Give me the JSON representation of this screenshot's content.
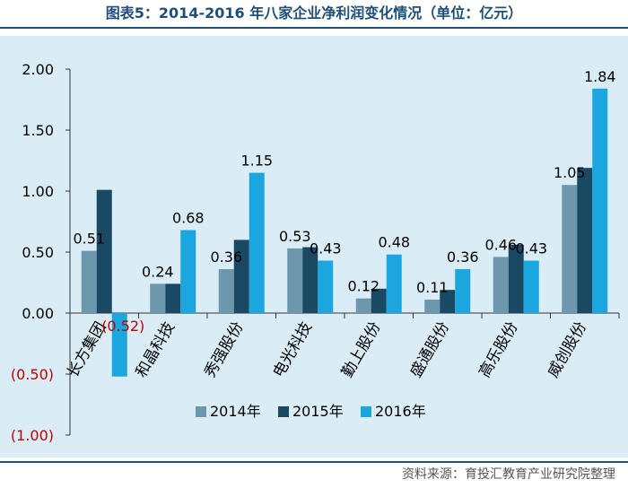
{
  "figure_title": "图表5：2014-2016 年八家企业净利润变化情况（单位：亿元）",
  "source_note": "资料来源：育投汇教育产业研究院整理",
  "colors": {
    "panel_bg": "#daedf7",
    "axis": "#333333",
    "negative_text": "#c00000",
    "title": "#1f4e79"
  },
  "chart_data": {
    "type": "bar",
    "title": "",
    "xlabel": "",
    "ylabel": "",
    "ylim": [
      -1.0,
      2.0
    ],
    "yticks": [
      2.0,
      1.5,
      1.0,
      0.5,
      0.0,
      -0.5,
      -1.0
    ],
    "ytick_labels": [
      "2.00",
      "1.50",
      "1.00",
      "0.50",
      "0.00",
      "(0.50)",
      "(1.00)"
    ],
    "grid": false,
    "legend_position": "bottom",
    "categories": [
      "长方集团",
      "和晶科技",
      "秀强股份",
      "电光科技",
      "勤上股份",
      "盛通股份",
      "高乐股份",
      "威创股份"
    ],
    "series": [
      {
        "name": "2014年",
        "color": "#6d97ad",
        "values": [
          0.51,
          0.24,
          0.36,
          0.53,
          0.12,
          0.11,
          0.46,
          1.05
        ]
      },
      {
        "name": "2015年",
        "color": "#1a4a63",
        "values": [
          1.01,
          0.24,
          0.6,
          0.54,
          0.2,
          0.19,
          0.56,
          1.19
        ]
      },
      {
        "name": "2016年",
        "color": "#1ba6e0",
        "values": [
          -0.52,
          0.68,
          1.15,
          0.43,
          0.48,
          0.36,
          0.43,
          1.84
        ]
      }
    ],
    "data_labels": [
      {
        "category_index": 0,
        "series_index": 0,
        "text": "0.51"
      },
      {
        "category_index": 0,
        "series_index": 2,
        "text": "(0.52)",
        "negative": true
      },
      {
        "category_index": 1,
        "series_index": 0,
        "text": "0.24"
      },
      {
        "category_index": 1,
        "series_index": 2,
        "text": "0.68"
      },
      {
        "category_index": 2,
        "series_index": 0,
        "text": "0.36"
      },
      {
        "category_index": 2,
        "series_index": 2,
        "text": "1.15"
      },
      {
        "category_index": 3,
        "series_index": 0,
        "text": "0.53"
      },
      {
        "category_index": 3,
        "series_index": 2,
        "text": "0.43"
      },
      {
        "category_index": 4,
        "series_index": 0,
        "text": "0.12"
      },
      {
        "category_index": 4,
        "series_index": 2,
        "text": "0.48"
      },
      {
        "category_index": 5,
        "series_index": 0,
        "text": "0.11"
      },
      {
        "category_index": 5,
        "series_index": 2,
        "text": "0.36"
      },
      {
        "category_index": 6,
        "series_index": 0,
        "text": "0.46"
      },
      {
        "category_index": 6,
        "series_index": 2,
        "text": "0.43"
      },
      {
        "category_index": 7,
        "series_index": 0,
        "text": "1.05"
      },
      {
        "category_index": 7,
        "series_index": 2,
        "text": "1.84"
      }
    ]
  }
}
